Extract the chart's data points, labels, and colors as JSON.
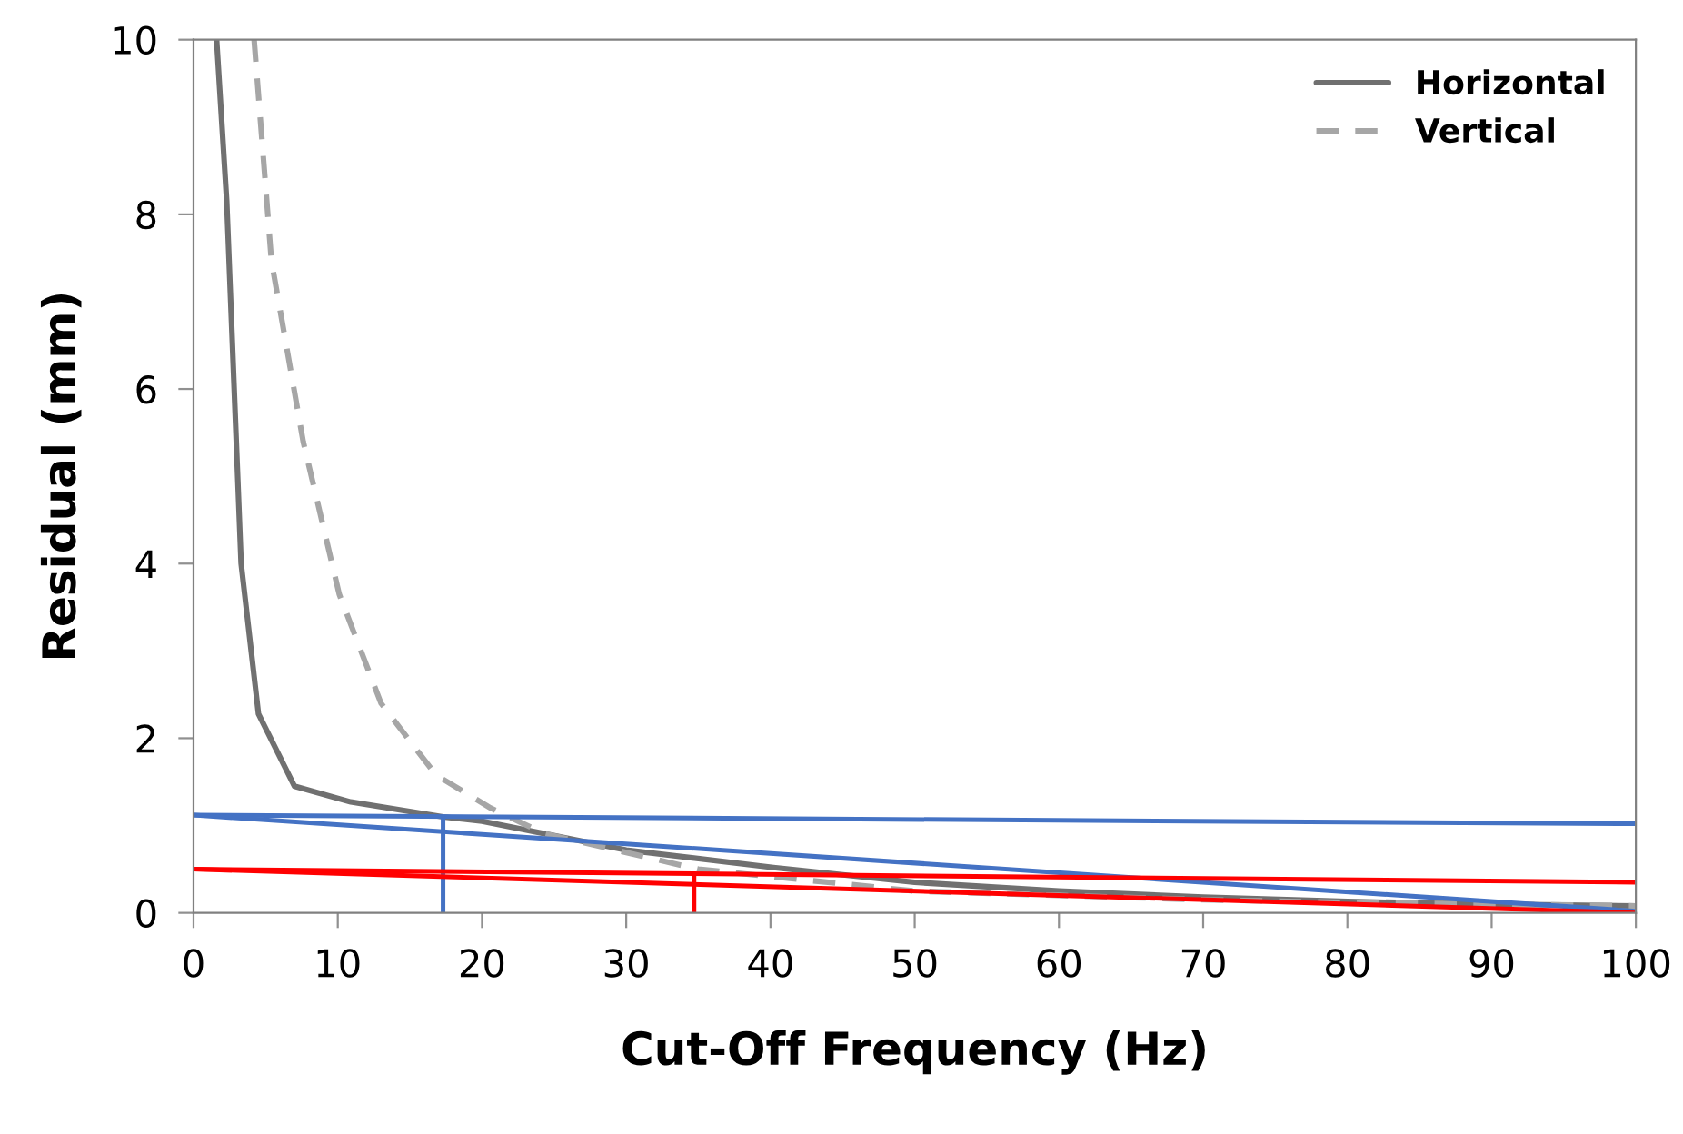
{
  "chart_data": {
    "type": "line",
    "xlabel": "Cut-Off Frequency (Hz)",
    "ylabel": "Residual (mm)",
    "xlim": [
      0,
      100
    ],
    "ylim": [
      0,
      10
    ],
    "xticks": [
      0,
      10,
      20,
      30,
      40,
      50,
      60,
      70,
      80,
      90,
      100
    ],
    "yticks": [
      0,
      2,
      4,
      6,
      8,
      10
    ],
    "grid": false,
    "legend": "top right",
    "marker": "none",
    "series": [
      {
        "name": "Horizontal",
        "color": "#707070",
        "line_style": "solid",
        "x": [
          1.6,
          2.3,
          3.3,
          4.5,
          7,
          10.9,
          17.3,
          20,
          30,
          40.2,
          50,
          60,
          70,
          80,
          90,
          100
        ],
        "values": [
          10,
          8.15,
          4.0,
          2.28,
          1.45,
          1.27,
          1.1,
          1.05,
          0.72,
          0.52,
          0.35,
          0.25,
          0.18,
          0.13,
          0.1,
          0.08
        ]
      },
      {
        "name": "Vertical",
        "color": "#a6a6a6",
        "line_style": "dashed",
        "x": [
          4.2,
          5.4,
          7.6,
          10.1,
          13,
          16.8,
          20.6,
          24.3,
          35,
          50,
          60,
          70,
          80,
          90,
          100
        ],
        "values": [
          10,
          7.47,
          5.4,
          3.65,
          2.4,
          1.58,
          1.2,
          0.91,
          0.5,
          0.25,
          0.2,
          0.15,
          0.12,
          0.1,
          0.08
        ]
      },
      {
        "color": "#4472c4",
        "line_style": "solid",
        "x": [
          0,
          100
        ],
        "values": [
          1.12,
          1.02
        ]
      },
      {
        "color": "#4472c4",
        "line_style": "solid",
        "x": [
          0,
          100
        ],
        "values": [
          1.12,
          0.02
        ]
      },
      {
        "color": "#4472c4",
        "line_style": "solid",
        "x": [
          17.3,
          17.3
        ],
        "values": [
          0,
          1.1
        ]
      },
      {
        "color": "#ff0000",
        "line_style": "solid",
        "x": [
          0,
          100
        ],
        "values": [
          0.5,
          0.35
        ]
      },
      {
        "color": "#ff0000",
        "line_style": "solid",
        "x": [
          0,
          100
        ],
        "values": [
          0.5,
          0.0
        ]
      },
      {
        "color": "#ff0000",
        "line_style": "solid",
        "x": [
          34.7,
          34.7
        ],
        "values": [
          0,
          0.45
        ]
      }
    ]
  }
}
